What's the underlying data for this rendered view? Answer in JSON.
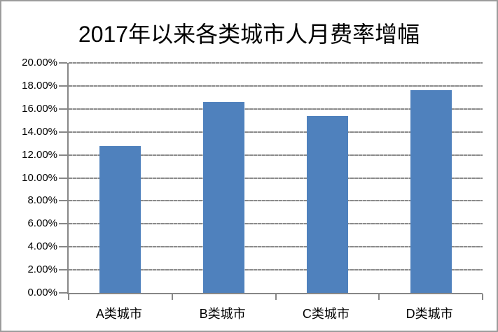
{
  "window": {
    "background_color": "#ffffff",
    "border_color": "#9c9c9c"
  },
  "chart_data": {
    "type": "bar",
    "title": "2017年以来各类城市人月费率增幅",
    "categories": [
      "A类城市",
      "B类城市",
      "C类城市",
      "D类城市"
    ],
    "values": [
      12.75,
      16.6,
      15.4,
      17.6
    ],
    "value_unit": "%",
    "xlabel": "",
    "ylabel": "",
    "ylim": [
      0,
      20
    ],
    "ytick_values": [
      0,
      2,
      4,
      6,
      8,
      10,
      12,
      14,
      16,
      18,
      20
    ],
    "ytick_labels": [
      "0.00%",
      "2.00%",
      "4.00%",
      "6.00%",
      "8.00%",
      "10.00%",
      "12.00%",
      "14.00%",
      "16.00%",
      "18.00%",
      "20.00%"
    ],
    "grid": true,
    "legend": false,
    "bar_color": "#4F81BD",
    "gridline_color": "#8a8a8a",
    "axis_color": "#878787",
    "text_color": "#000000"
  }
}
